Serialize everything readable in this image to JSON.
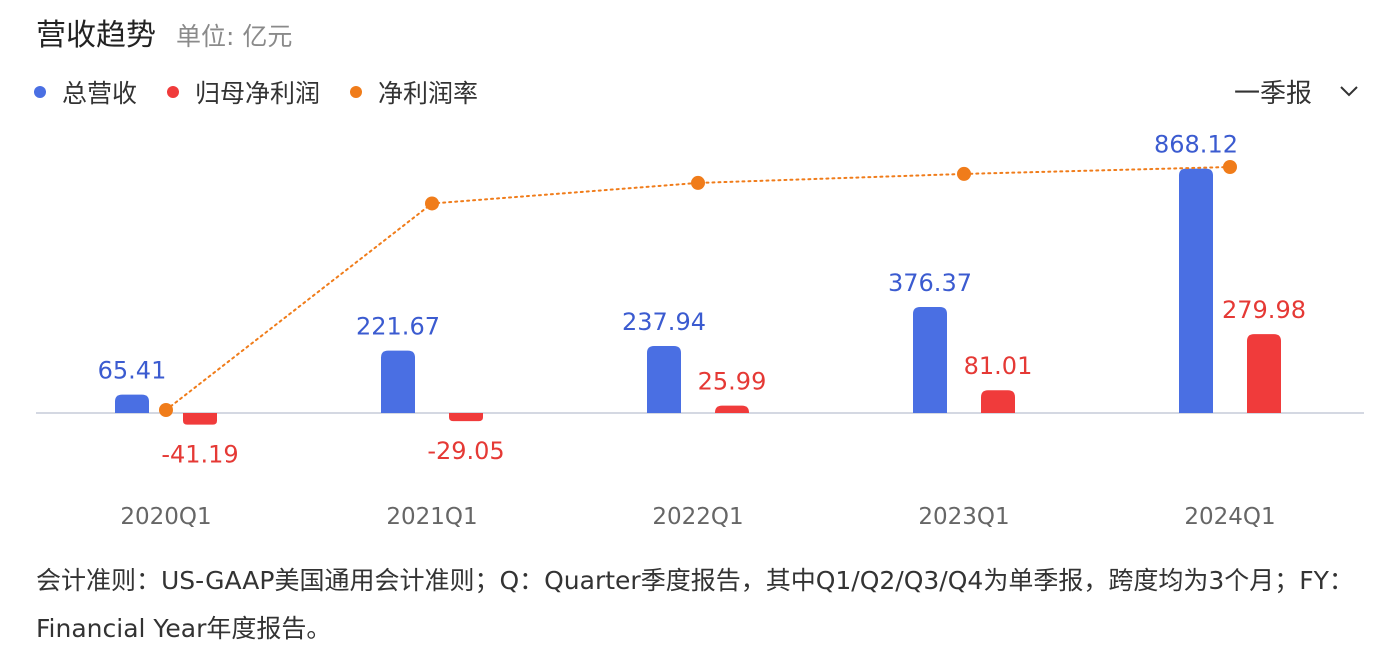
{
  "header": {
    "title": "营收趋势",
    "unit": "单位: 亿元"
  },
  "legend": [
    {
      "label": "总营收",
      "color": "#4a6fe3"
    },
    {
      "label": "归母净利润",
      "color": "#f03b3b"
    },
    {
      "label": "净利润率",
      "color": "#f07c1a"
    }
  ],
  "period_select": {
    "label": "一季报",
    "icon": "chevron-down-icon"
  },
  "chart_data": {
    "type": "bar",
    "categories": [
      "2020Q1",
      "2021Q1",
      "2022Q1",
      "2023Q1",
      "2024Q1"
    ],
    "series": [
      {
        "name": "总营收",
        "values": [
          65.41,
          221.67,
          237.94,
          376.37,
          868.12
        ],
        "labels": [
          "65.41",
          "221.67",
          "237.94",
          "376.37",
          "868.12"
        ],
        "color": "#4a6fe3"
      },
      {
        "name": "归母净利润",
        "values": [
          -41.19,
          -29.05,
          25.99,
          81.01,
          279.98
        ],
        "labels": [
          "-41.19",
          "-29.05",
          "25.99",
          "81.01",
          "279.98"
        ],
        "color": "#f03b3b"
      }
    ],
    "line_series": {
      "name": "净利润率",
      "values": [
        -63.0,
        8.0,
        18.0,
        22.5,
        26.0
      ],
      "color": "#f07c1a",
      "style": "dotted"
    },
    "grid": false,
    "legend_position": "top-left"
  },
  "footnote": "会计准则：US-GAAP美国通用会计准则；Q：Quarter季度报告，其中Q1/Q2/Q3/Q4为单季报，跨度均为3个月；FY：Financial Year年度报告。"
}
